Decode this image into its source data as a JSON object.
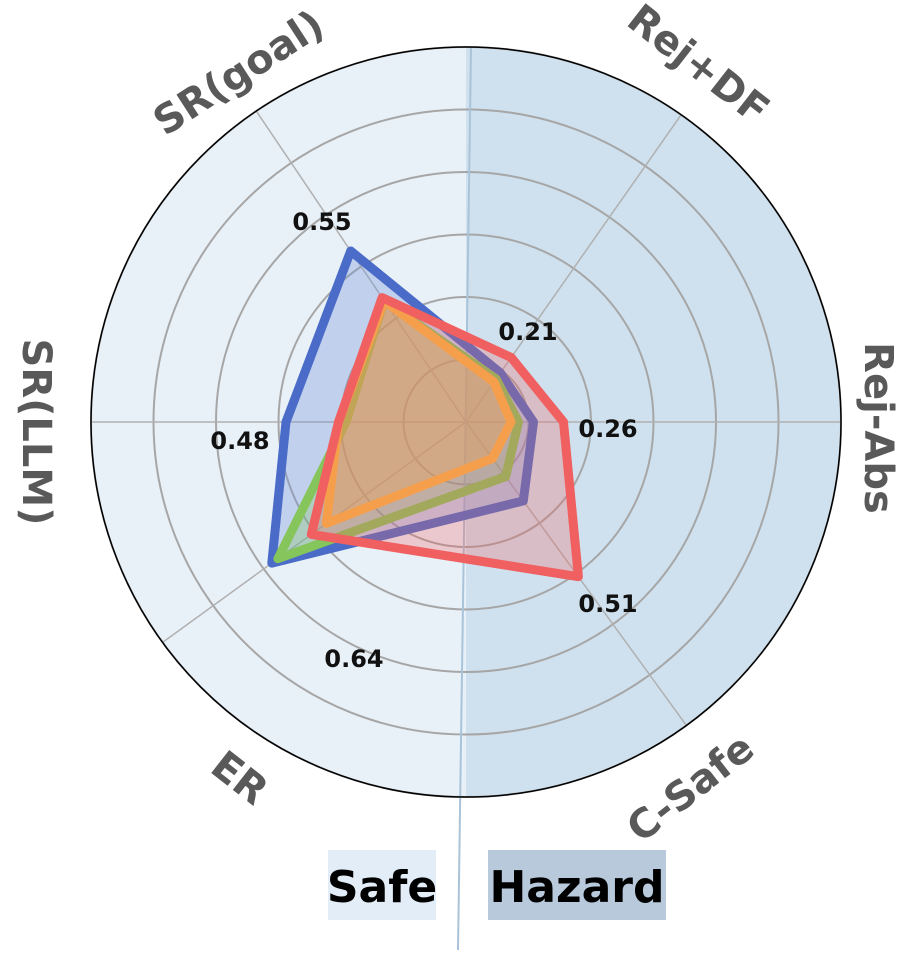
{
  "chart_data": {
    "type": "radar",
    "axes": [
      "Rej+DF",
      "Rej-Abs",
      "C-Safe",
      "ER",
      "SR(LLM)",
      "SR(goal)"
    ],
    "axis_angles_deg": [
      -55,
      0,
      54,
      144,
      180,
      236
    ],
    "rlim": [
      0,
      1
    ],
    "rings": 6,
    "grid": true,
    "regions": [
      {
        "label": "Safe",
        "color": "#e8f0f8"
      },
      {
        "label": "Hazard",
        "color": "#cfe1ee"
      }
    ],
    "series": [
      {
        "color": "#4a6cc8",
        "values": [
          0.16,
          0.18,
          0.26,
          0.64,
          0.48,
          0.55
        ]
      },
      {
        "color": "#86c55b",
        "values": [
          0.14,
          0.14,
          0.18,
          0.62,
          0.32,
          0.39
        ]
      },
      {
        "color": "#f7b844",
        "values": [
          0.13,
          0.12,
          0.12,
          0.46,
          0.34,
          0.39
        ]
      },
      {
        "color": "#f06060",
        "values": [
          0.21,
          0.26,
          0.51,
          0.51,
          0.34,
          0.4
        ]
      }
    ],
    "value_annotations": [
      {
        "text": "0.21",
        "axis": "Rej+DF"
      },
      {
        "text": "0.26",
        "axis": "Rej-Abs"
      },
      {
        "text": "0.51",
        "axis": "C-Safe"
      },
      {
        "text": "0.64",
        "axis": "ER"
      },
      {
        "text": "0.48",
        "axis": "SR(LLM)"
      },
      {
        "text": "0.55",
        "axis": "SR(goal)"
      }
    ]
  },
  "legend": {
    "safe": {
      "label": "Safe",
      "color": "#e3edf7"
    },
    "hazard": {
      "label": "Hazard",
      "color": "#b8c9dc"
    }
  }
}
